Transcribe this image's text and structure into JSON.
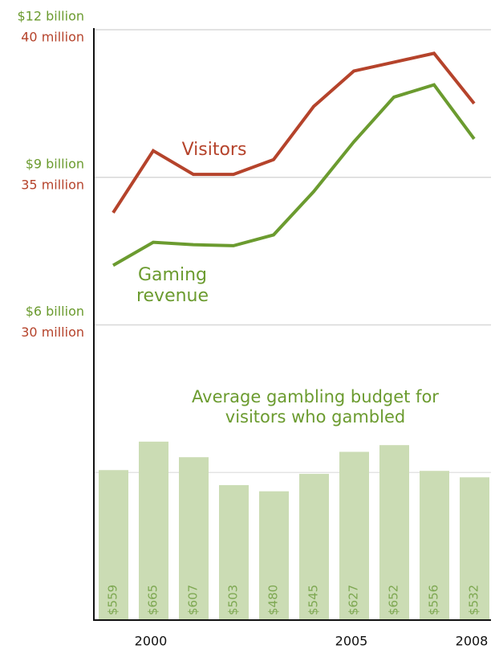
{
  "chart_data": {
    "type": "line",
    "categories": [
      null,
      "2000",
      null,
      null,
      null,
      null,
      "2005",
      null,
      null,
      "2008"
    ],
    "series": [
      {
        "name": "Visitors",
        "color": "#b5432b",
        "values": [
          33.8,
          35.9,
          35.1,
          35.1,
          35.6,
          37.4,
          38.6,
          38.9,
          39.2,
          37.5
        ]
      },
      {
        "name": "Gaming revenue",
        "color": "#6b9b2f",
        "axis": "y2",
        "values": [
          7.21,
          7.68,
          7.63,
          7.61,
          7.83,
          8.71,
          9.72,
          10.63,
          10.88,
          9.78
        ]
      }
    ],
    "ylim": [
      20,
      40
    ],
    "yticks": [
      {
        "value": 30,
        "label": "30 million"
      },
      {
        "value": 35,
        "label": "35 million"
      },
      {
        "value": 40,
        "label": "40 million"
      }
    ],
    "minor_yticks": [
      25
    ],
    "y2lim": [
      0,
      12
    ],
    "y2ticks": [
      {
        "value": 6,
        "label": "$6 billion"
      },
      {
        "value": 9,
        "label": "$9 billion"
      },
      {
        "value": 12,
        "label": "$12 billion"
      }
    ],
    "grid": true,
    "bars": {
      "type": "bar",
      "title": "Average gambling budget for visitors who gambled",
      "color": "#cbdcb4",
      "label_color": "#7ea852",
      "title_color": "#6b9b2f",
      "ylim": [
        0,
        2200
      ],
      "values": [
        559,
        665,
        607,
        503,
        480,
        545,
        627,
        652,
        556,
        532
      ],
      "value_labels": [
        "$559",
        "$665",
        "$607",
        "$503",
        "$480",
        "$545",
        "$627",
        "$652",
        "$556",
        "$532"
      ]
    }
  }
}
